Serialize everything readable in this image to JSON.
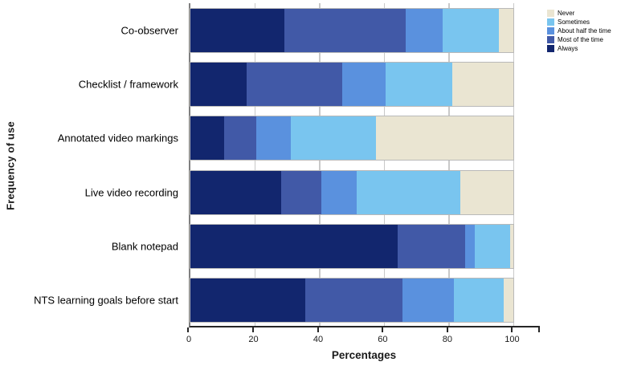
{
  "chart_data": {
    "type": "bar",
    "orientation": "horizontal",
    "stacked": true,
    "title": "",
    "xlabel": "Percentages",
    "ylabel": "Frequency of use",
    "xlim": [
      0,
      108.6
    ],
    "x_ticks": [
      0,
      20,
      40,
      60,
      80,
      100
    ],
    "grid": "vertical",
    "legend_position": "top-right",
    "categories": [
      "Co-observer",
      "Checklist / framework",
      "Annotated video markings",
      "Live video recording",
      "Blank notepad",
      "NTS learning goals before start"
    ],
    "series": [
      {
        "name": "Always",
        "color": "#12266e",
        "values": [
          29,
          17.5,
          10.5,
          28,
          64,
          35.5
        ]
      },
      {
        "name": "Most of the time",
        "color": "#4159a7",
        "values": [
          37.5,
          29.5,
          10,
          12.5,
          21,
          30
        ]
      },
      {
        "name": "About half the time",
        "color": "#5a91de",
        "values": [
          11.5,
          13.5,
          10.5,
          11,
          3,
          16
        ]
      },
      {
        "name": "Sometimes",
        "color": "#79c5ef",
        "values": [
          17.5,
          20.5,
          26.5,
          32,
          11,
          15.5
        ]
      },
      {
        "name": "Never",
        "color": "#eae5d2",
        "values": [
          4.5,
          19,
          42.5,
          16.5,
          1,
          3
        ]
      }
    ],
    "legend_order": [
      "Never",
      "Sometimes",
      "About half the time",
      "Most of the time",
      "Always"
    ]
  },
  "style_colors": {
    "gridline": "#c9c9c9",
    "axis_line": "#262626",
    "left_spine": "#7f7f7f"
  }
}
